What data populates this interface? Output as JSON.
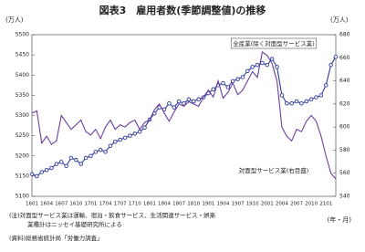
{
  "chart_data": {
    "type": "line",
    "title": "図表3　雇用者数(季節調整値)の推移",
    "y_label": "(万人)",
    "y2_label": "(万人)",
    "x_label": "(年・月)",
    "categories": [
      "1601",
      null,
      null,
      "1604",
      null,
      null,
      "1607",
      null,
      null,
      "1610",
      null,
      null,
      "1701",
      null,
      null,
      "1704",
      null,
      null,
      "1707",
      null,
      null,
      "1710",
      null,
      null,
      "1801",
      null,
      null,
      "1804",
      null,
      null,
      "1807",
      null,
      null,
      "1810",
      null,
      null,
      "1901",
      null,
      null,
      "1904",
      null,
      null,
      "1907",
      null,
      null,
      "1910",
      null,
      null,
      "2001",
      null,
      null,
      "2004",
      null,
      null,
      "2007",
      null,
      null,
      "2010",
      null,
      null,
      "2101",
      null,
      null
    ],
    "series": [
      {
        "name": "全産業(除く対面型サービス業)",
        "color": "#2b3a9c",
        "axis": "y",
        "markers": true,
        "values": [
          5155,
          5150,
          5160,
          5165,
          5170,
          5180,
          5185,
          5175,
          5195,
          5190,
          5180,
          5195,
          5200,
          5210,
          5215,
          5210,
          5225,
          5235,
          5240,
          5245,
          5250,
          5255,
          5260,
          5270,
          5290,
          5305,
          5320,
          5315,
          5330,
          5320,
          5335,
          5330,
          5340,
          5335,
          5340,
          5345,
          5355,
          5365,
          5375,
          5380,
          5370,
          5385,
          5390,
          5395,
          5410,
          5420,
          5425,
          5430,
          5425,
          5440,
          5420,
          5350,
          5330,
          5330,
          5335,
          5330,
          5335,
          5340,
          5345,
          5350,
          5375,
          5425,
          5445
        ]
      },
      {
        "name": "対面型サービス業(右目盛)",
        "color": "#6b3f9e",
        "axis": "y2",
        "markers": false,
        "values": [
          612,
          614,
          586,
          592,
          585,
          588,
          610,
          604,
          598,
          602,
          606,
          596,
          593,
          598,
          590,
          600,
          606,
          598,
          602,
          600,
          604,
          606,
          598,
          604,
          606,
          615,
          620,
          612,
          605,
          613,
          620,
          618,
          622,
          620,
          618,
          626,
          632,
          626,
          640,
          625,
          630,
          638,
          628,
          632,
          640,
          648,
          643,
          665,
          662,
          655,
          640,
          600,
          592,
          588,
          598,
          596,
          605,
          610,
          605,
          592,
          575,
          560,
          555
        ]
      }
    ],
    "ylim": [
      5100,
      5500
    ],
    "yticks": [
      5100,
      5150,
      5200,
      5250,
      5300,
      5350,
      5400,
      5450,
      5500
    ],
    "y2lim": [
      540,
      680
    ],
    "y2ticks": [
      540,
      560,
      580,
      600,
      620,
      640,
      660,
      680
    ],
    "notes": [
      "(注)対面型サービス業は運輸、宿泊・飲食サービス、生活関連サービス・娯楽",
      "業種計はニッセイ基礎研究所による",
      "(資料)総務省統計局「労働力調査」"
    ]
  }
}
